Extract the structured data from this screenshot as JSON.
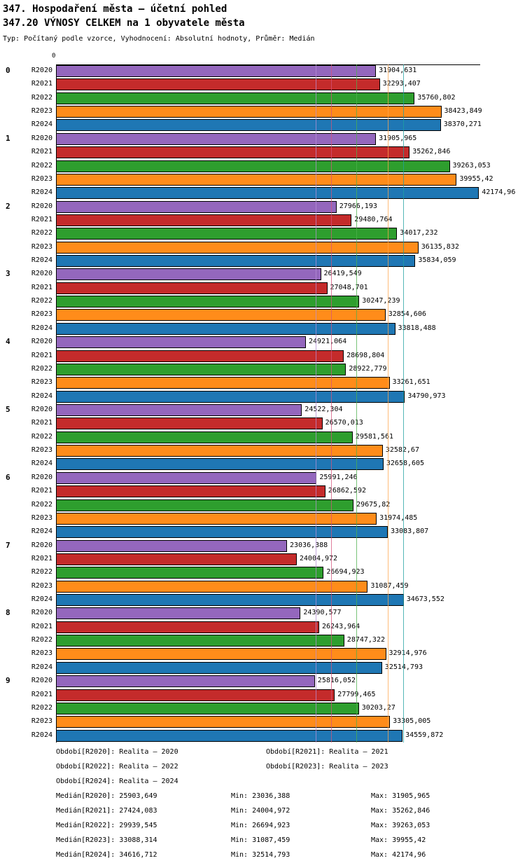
{
  "header": {
    "title": "347. Hospodaření města – účetní pohled",
    "subtitle": "347.20 VÝNOSY CELKEM na 1 obyvatele města",
    "meta": "Typ: Počítaný podle vzorce, Vyhodnocení: Absolutní hodnoty, Průměr: Medián"
  },
  "chart_data": {
    "type": "bar",
    "orientation": "horizontal",
    "grid": false,
    "x_axis": {
      "zero_label": "0",
      "min": 0,
      "max": 42300
    },
    "series": [
      {
        "name": "R2020",
        "color": "#9467BD",
        "median": 25903.649,
        "median_line_color": "#B58FD6"
      },
      {
        "name": "R2021",
        "color": "#C42B2B",
        "median": 27424.083,
        "median_line_color": "#D4537B"
      },
      {
        "name": "R2022",
        "color": "#2E9E2E",
        "median": 29939.545,
        "median_line_color": "#4CB04C"
      },
      {
        "name": "R2023",
        "color": "#FF8C1A",
        "median": 33088.314,
        "median_line_color": "#FFA64D"
      },
      {
        "name": "R2024",
        "color": "#1F77B4",
        "median": 34616.712,
        "median_line_color": "#1FA0A0"
      }
    ],
    "groups": [
      {
        "label": "0",
        "values": [
          31904.631,
          32293.407,
          35760.802,
          38423.849,
          38370.271
        ]
      },
      {
        "label": "1",
        "values": [
          31905.965,
          35262.846,
          39263.053,
          39955.42,
          42174.96
        ]
      },
      {
        "label": "2",
        "values": [
          27966.193,
          29480.764,
          34017.232,
          36135.832,
          35834.059
        ]
      },
      {
        "label": "3",
        "values": [
          26419.549,
          27048.701,
          30247.239,
          32854.606,
          33818.488
        ]
      },
      {
        "label": "4",
        "values": [
          24921.064,
          28698.804,
          28922.779,
          33261.651,
          34790.973
        ]
      },
      {
        "label": "5",
        "values": [
          24522.304,
          26570.013,
          29581.561,
          32582.67,
          32658.605
        ]
      },
      {
        "label": "6",
        "values": [
          25991.246,
          26862.592,
          29675.82,
          31974.485,
          33083.807
        ]
      },
      {
        "label": "7",
        "values": [
          23036.388,
          24004.972,
          26694.923,
          31087.459,
          34673.552
        ]
      },
      {
        "label": "8",
        "values": [
          24390.577,
          26243.964,
          28747.322,
          32914.976,
          32514.793
        ]
      },
      {
        "label": "9",
        "values": [
          25816.052,
          27799.465,
          30203.27,
          33305.005,
          34559.872
        ]
      }
    ]
  },
  "footer": {
    "period_rows": [
      {
        "left": "Období[R2020]: Realita – 2020",
        "right": "Období[R2021]: Realita – 2021"
      },
      {
        "left": "Období[R2022]: Realita – 2022",
        "right": "Období[R2023]: Realita – 2023"
      },
      {
        "left": "Období[R2024]: Realita – 2024",
        "right": ""
      }
    ],
    "stat_rows": [
      {
        "median": "Medián[R2020]: 25903,649",
        "min": "Min: 23036,388",
        "max": "Max: 31905,965"
      },
      {
        "median": "Medián[R2021]: 27424,083",
        "min": "Min: 24004,972",
        "max": "Max: 35262,846"
      },
      {
        "median": "Medián[R2022]: 29939,545",
        "min": "Min: 26694,923",
        "max": "Max: 39263,053"
      },
      {
        "median": "Medián[R2023]: 33088,314",
        "min": "Min: 31087,459",
        "max": "Max: 39955,42"
      },
      {
        "median": "Medián[R2024]: 34616,712",
        "min": "Min: 32514,793",
        "max": "Max: 42174,96"
      }
    ]
  }
}
